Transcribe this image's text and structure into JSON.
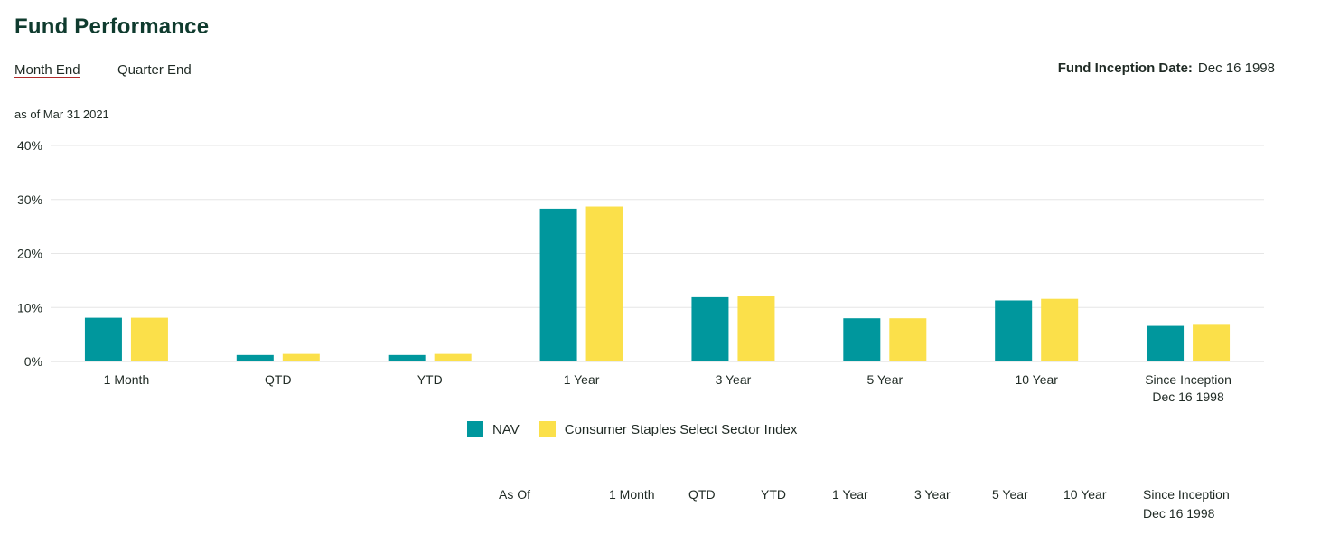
{
  "header": {
    "title": "Fund Performance",
    "tabs": [
      {
        "label": "Month End",
        "active": true
      },
      {
        "label": "Quarter End",
        "active": false
      }
    ],
    "inception_label": "Fund Inception Date:",
    "inception_value": "Dec 16 1998",
    "as_of": "as of Mar 31 2021"
  },
  "colors": {
    "nav": "#00979d",
    "index": "#fbe04a",
    "grid": "#e6e6e6",
    "title": "#0f3b2e"
  },
  "chart_data": {
    "type": "bar",
    "categories": [
      "1 Month",
      "QTD",
      "YTD",
      "1 Year",
      "3 Year",
      "5 Year",
      "10 Year",
      "Since Inception\nDec 16 1998"
    ],
    "series": [
      {
        "name": "NAV",
        "values": [
          8.1,
          1.2,
          1.2,
          28.3,
          11.9,
          8.0,
          11.3,
          6.6
        ]
      },
      {
        "name": "Consumer Staples Select Sector Index",
        "values": [
          8.1,
          1.4,
          1.4,
          28.7,
          12.1,
          8.0,
          11.6,
          6.8
        ]
      }
    ],
    "ylim": [
      0,
      40
    ],
    "yticks": [
      "0%",
      "10%",
      "20%",
      "30%",
      "40%"
    ],
    "ytick_values": [
      0,
      10,
      20,
      30,
      40
    ],
    "grid": true,
    "legend_position": "bottom-center"
  },
  "table": {
    "headers": [
      "As Of",
      "1 Month",
      "QTD",
      "YTD",
      "1 Year",
      "3 Year",
      "5 Year",
      "10 Year",
      "Since Inception",
      "Dec 16 1998"
    ]
  }
}
